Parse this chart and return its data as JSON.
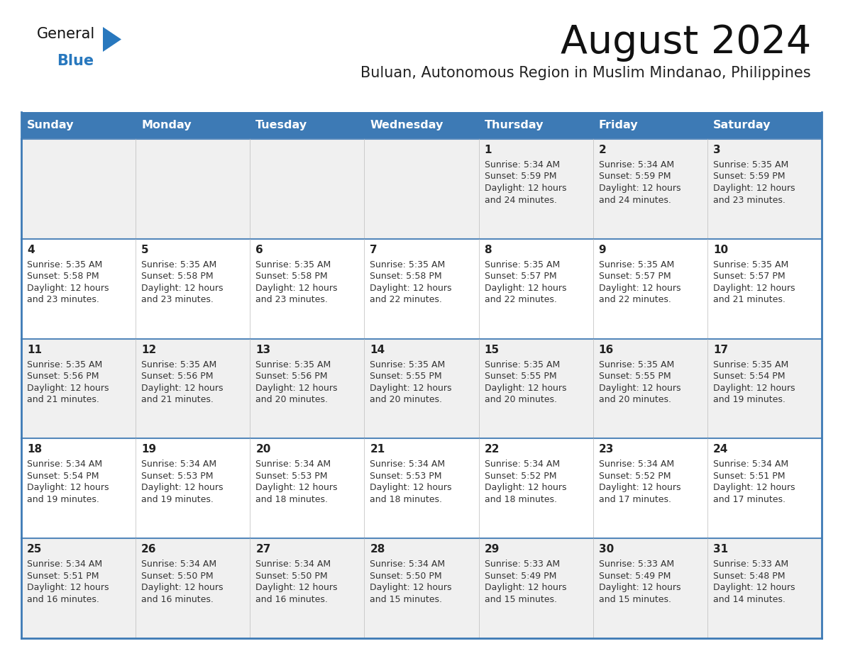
{
  "title": "August 2024",
  "subtitle": "Buluan, Autonomous Region in Muslim Mindanao, Philippines",
  "days_of_week": [
    "Sunday",
    "Monday",
    "Tuesday",
    "Wednesday",
    "Thursday",
    "Friday",
    "Saturday"
  ],
  "header_bg": "#3d7ab5",
  "header_text": "#ffffff",
  "row_bg_odd": "#f0f0f0",
  "row_bg_even": "#ffffff",
  "cell_text": "#333333",
  "day_num_color": "#222222",
  "separator_color": "#3d7ab5",
  "row_separator_color": "#5588bb",
  "title_color": "#111111",
  "subtitle_color": "#222222",
  "logo_general_color": "#111111",
  "logo_blue_color": "#2878be",
  "calendar_data": [
    [
      null,
      null,
      null,
      null,
      {
        "day": 1,
        "sunrise": "5:34 AM",
        "sunset": "5:59 PM",
        "daylight": "12 hours and 24 minutes"
      },
      {
        "day": 2,
        "sunrise": "5:34 AM",
        "sunset": "5:59 PM",
        "daylight": "12 hours and 24 minutes"
      },
      {
        "day": 3,
        "sunrise": "5:35 AM",
        "sunset": "5:59 PM",
        "daylight": "12 hours and 23 minutes"
      }
    ],
    [
      {
        "day": 4,
        "sunrise": "5:35 AM",
        "sunset": "5:58 PM",
        "daylight": "12 hours and 23 minutes"
      },
      {
        "day": 5,
        "sunrise": "5:35 AM",
        "sunset": "5:58 PM",
        "daylight": "12 hours and 23 minutes"
      },
      {
        "day": 6,
        "sunrise": "5:35 AM",
        "sunset": "5:58 PM",
        "daylight": "12 hours and 23 minutes"
      },
      {
        "day": 7,
        "sunrise": "5:35 AM",
        "sunset": "5:58 PM",
        "daylight": "12 hours and 22 minutes"
      },
      {
        "day": 8,
        "sunrise": "5:35 AM",
        "sunset": "5:57 PM",
        "daylight": "12 hours and 22 minutes"
      },
      {
        "day": 9,
        "sunrise": "5:35 AM",
        "sunset": "5:57 PM",
        "daylight": "12 hours and 22 minutes"
      },
      {
        "day": 10,
        "sunrise": "5:35 AM",
        "sunset": "5:57 PM",
        "daylight": "12 hours and 21 minutes"
      }
    ],
    [
      {
        "day": 11,
        "sunrise": "5:35 AM",
        "sunset": "5:56 PM",
        "daylight": "12 hours and 21 minutes"
      },
      {
        "day": 12,
        "sunrise": "5:35 AM",
        "sunset": "5:56 PM",
        "daylight": "12 hours and 21 minutes"
      },
      {
        "day": 13,
        "sunrise": "5:35 AM",
        "sunset": "5:56 PM",
        "daylight": "12 hours and 20 minutes"
      },
      {
        "day": 14,
        "sunrise": "5:35 AM",
        "sunset": "5:55 PM",
        "daylight": "12 hours and 20 minutes"
      },
      {
        "day": 15,
        "sunrise": "5:35 AM",
        "sunset": "5:55 PM",
        "daylight": "12 hours and 20 minutes"
      },
      {
        "day": 16,
        "sunrise": "5:35 AM",
        "sunset": "5:55 PM",
        "daylight": "12 hours and 20 minutes"
      },
      {
        "day": 17,
        "sunrise": "5:35 AM",
        "sunset": "5:54 PM",
        "daylight": "12 hours and 19 minutes"
      }
    ],
    [
      {
        "day": 18,
        "sunrise": "5:34 AM",
        "sunset": "5:54 PM",
        "daylight": "12 hours and 19 minutes"
      },
      {
        "day": 19,
        "sunrise": "5:34 AM",
        "sunset": "5:53 PM",
        "daylight": "12 hours and 19 minutes"
      },
      {
        "day": 20,
        "sunrise": "5:34 AM",
        "sunset": "5:53 PM",
        "daylight": "12 hours and 18 minutes"
      },
      {
        "day": 21,
        "sunrise": "5:34 AM",
        "sunset": "5:53 PM",
        "daylight": "12 hours and 18 minutes"
      },
      {
        "day": 22,
        "sunrise": "5:34 AM",
        "sunset": "5:52 PM",
        "daylight": "12 hours and 18 minutes"
      },
      {
        "day": 23,
        "sunrise": "5:34 AM",
        "sunset": "5:52 PM",
        "daylight": "12 hours and 17 minutes"
      },
      {
        "day": 24,
        "sunrise": "5:34 AM",
        "sunset": "5:51 PM",
        "daylight": "12 hours and 17 minutes"
      }
    ],
    [
      {
        "day": 25,
        "sunrise": "5:34 AM",
        "sunset": "5:51 PM",
        "daylight": "12 hours and 16 minutes"
      },
      {
        "day": 26,
        "sunrise": "5:34 AM",
        "sunset": "5:50 PM",
        "daylight": "12 hours and 16 minutes"
      },
      {
        "day": 27,
        "sunrise": "5:34 AM",
        "sunset": "5:50 PM",
        "daylight": "12 hours and 16 minutes"
      },
      {
        "day": 28,
        "sunrise": "5:34 AM",
        "sunset": "5:50 PM",
        "daylight": "12 hours and 15 minutes"
      },
      {
        "day": 29,
        "sunrise": "5:33 AM",
        "sunset": "5:49 PM",
        "daylight": "12 hours and 15 minutes"
      },
      {
        "day": 30,
        "sunrise": "5:33 AM",
        "sunset": "5:49 PM",
        "daylight": "12 hours and 15 minutes"
      },
      {
        "day": 31,
        "sunrise": "5:33 AM",
        "sunset": "5:48 PM",
        "daylight": "12 hours and 14 minutes"
      }
    ]
  ]
}
